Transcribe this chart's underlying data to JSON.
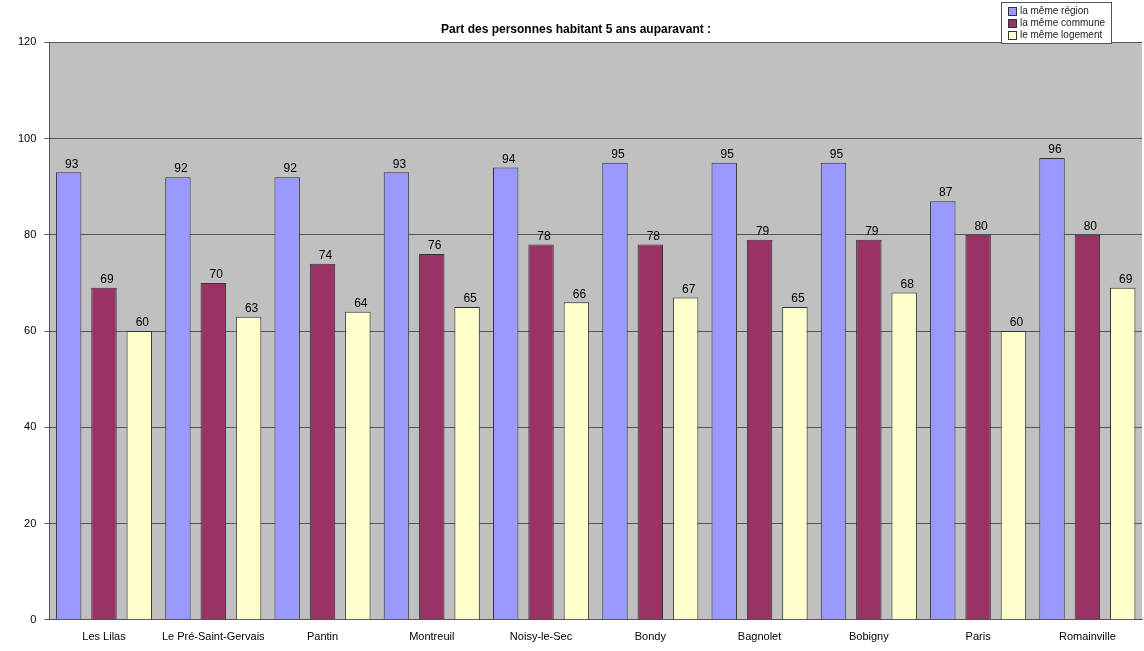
{
  "chart_data": {
    "type": "bar",
    "title": "Part des personnes habitant 5 ans auparavant :",
    "categories": [
      "Les Lilas",
      "Le Pré-Saint-Gervais",
      "Pantin",
      "Montreuil",
      "Noisy-le-Sec",
      "Bondy",
      "Bagnolet",
      "Bobigny",
      "Paris",
      "Romainville"
    ],
    "series": [
      {
        "name": "la même région",
        "color": "#9999ff",
        "values": [
          93,
          92,
          92,
          93,
          94,
          95,
          95,
          95,
          87,
          96
        ]
      },
      {
        "name": "la même commune",
        "color": "#993366",
        "values": [
          69,
          70,
          74,
          76,
          78,
          78,
          79,
          79,
          80,
          80
        ]
      },
      {
        "name": "le même logement",
        "color": "#ffffcc",
        "values": [
          60,
          63,
          64,
          65,
          66,
          67,
          65,
          68,
          60,
          69
        ]
      }
    ],
    "ylim": [
      0,
      120
    ],
    "yticks": [
      0,
      20,
      40,
      60,
      80,
      100,
      120
    ],
    "grid": "y",
    "legend": "top right",
    "data_labels": true
  }
}
